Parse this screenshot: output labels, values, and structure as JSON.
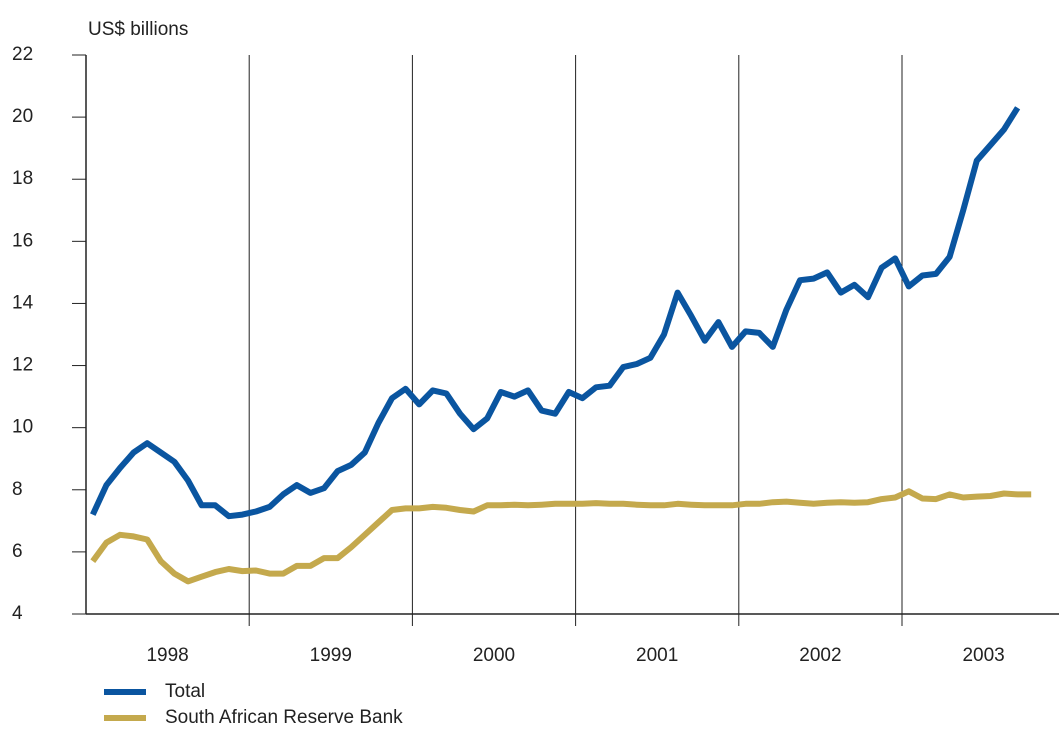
{
  "chart_data": {
    "type": "line",
    "ylabel": "US$ billions",
    "categories": [
      null,
      null,
      null,
      null,
      null,
      "1998",
      null,
      null,
      null,
      null,
      null,
      null,
      null,
      null,
      null,
      null,
      null,
      "1999",
      null,
      null,
      null,
      null,
      null,
      null,
      null,
      null,
      null,
      null,
      null,
      "2000",
      null,
      null,
      null,
      null,
      null,
      null,
      null,
      null,
      null,
      null,
      null,
      "2001",
      null,
      null,
      null,
      null,
      null,
      null,
      null,
      null,
      null,
      null,
      null,
      "2002",
      null,
      null,
      null,
      null,
      null,
      null,
      null,
      null,
      null,
      null,
      null,
      "2003",
      null,
      null,
      null,
      null,
      null,
      null
    ],
    "series": [
      {
        "name": "Total",
        "color": "#0a55a0",
        "values": [
          7.2,
          8.15,
          8.7,
          9.2,
          9.5,
          9.2,
          8.9,
          8.3,
          7.5,
          7.5,
          7.15,
          7.2,
          7.3,
          7.45,
          7.85,
          8.15,
          7.9,
          8.05,
          8.6,
          8.8,
          9.2,
          10.15,
          10.95,
          11.25,
          10.75,
          11.2,
          11.1,
          10.45,
          9.95,
          10.3,
          11.15,
          11.0,
          11.2,
          10.55,
          10.45,
          11.15,
          10.95,
          11.3,
          11.35,
          11.95,
          12.05,
          12.25,
          13.0,
          14.35,
          13.6,
          12.8,
          13.4,
          12.6,
          13.1,
          13.05,
          12.6,
          13.8,
          14.75,
          14.8,
          15.0,
          14.35,
          14.6,
          14.2,
          15.15,
          15.45,
          14.55,
          14.9,
          14.95,
          15.5,
          17.0,
          18.6,
          19.1,
          19.6,
          20.3,
          null,
          null,
          null
        ]
      },
      {
        "name": "South African Reserve Bank",
        "color": "#c4a94d",
        "values": [
          5.7,
          6.3,
          6.55,
          6.5,
          6.4,
          5.7,
          5.3,
          5.05,
          5.2,
          5.35,
          5.45,
          5.38,
          5.4,
          5.3,
          5.3,
          5.55,
          5.55,
          5.8,
          5.8,
          6.15,
          6.55,
          6.95,
          7.35,
          7.4,
          7.4,
          7.45,
          7.42,
          7.35,
          7.3,
          7.5,
          7.5,
          7.52,
          7.5,
          7.52,
          7.55,
          7.55,
          7.55,
          7.57,
          7.55,
          7.55,
          7.52,
          7.5,
          7.5,
          7.55,
          7.52,
          7.5,
          7.5,
          7.5,
          7.55,
          7.55,
          7.6,
          7.62,
          7.58,
          7.55,
          7.58,
          7.6,
          7.58,
          7.6,
          7.7,
          7.75,
          7.95,
          7.72,
          7.7,
          7.85,
          7.75,
          7.78,
          7.8,
          7.88,
          7.85,
          7.85,
          null,
          null
        ]
      }
    ],
    "ylim": [
      4,
      22
    ],
    "yticks": [
      4,
      6,
      8,
      10,
      12,
      14,
      16,
      18,
      20,
      22
    ]
  }
}
